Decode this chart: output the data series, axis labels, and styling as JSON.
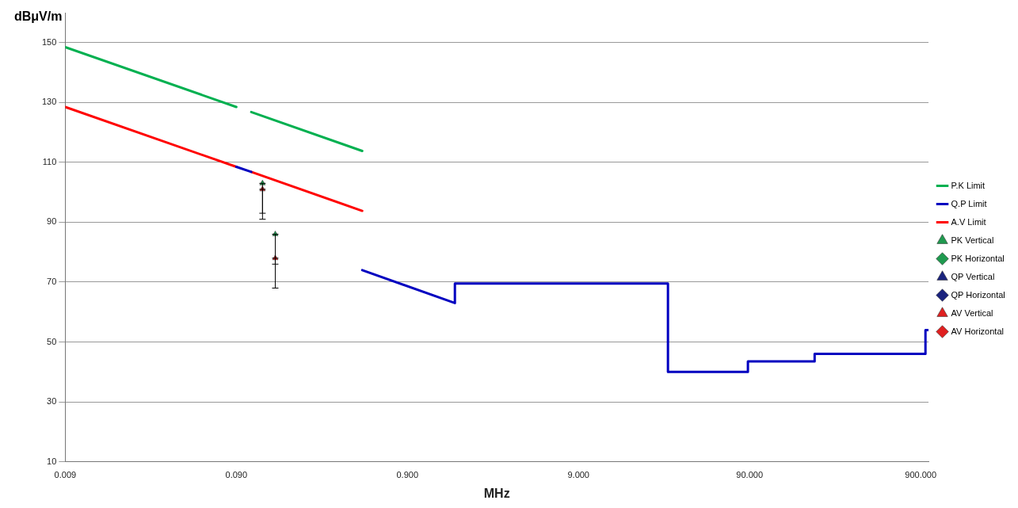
{
  "chart_data": {
    "type": "line",
    "xlabel": "MHz",
    "ylabel": "dBμV/m",
    "log": "x",
    "grid": "y",
    "legend": "right",
    "xlim": [
      0.009,
      1000
    ],
    "xticks": [
      {
        "value": 0.009,
        "label": "0.009"
      },
      {
        "value": 0.09,
        "label": "0.090"
      },
      {
        "value": 0.9,
        "label": "0.900"
      },
      {
        "value": 9,
        "label": "9.000"
      },
      {
        "value": 90,
        "label": "90.000"
      },
      {
        "value": 900,
        "label": "900.000"
      }
    ],
    "ylim": [
      10,
      160
    ],
    "yticks": [
      10,
      30,
      50,
      70,
      90,
      110,
      130,
      150
    ],
    "series": [
      {
        "name": "P.K Limit",
        "color": "#00b050",
        "marker": "none",
        "x": [
          0.009,
          0.09,
          0.1,
          0.11,
          0.49
        ],
        "values": [
          148.5,
          128.5,
          null,
          126.8,
          113.8
        ]
      },
      {
        "name": "Q.P Limit",
        "color": "#0000c0",
        "marker": "none",
        "x": [
          0.09,
          0.11,
          0.3,
          0.49,
          1.705,
          1.705,
          30,
          30,
          88,
          88,
          216,
          216,
          960,
          960,
          1000
        ],
        "values": [
          108.5,
          106.8,
          null,
          74,
          63,
          69.5,
          69.5,
          40,
          40,
          43.5,
          43.5,
          46,
          46,
          54,
          54
        ]
      },
      {
        "name": "A.V Limit",
        "color": "#ff0000",
        "marker": "none",
        "x": [
          0.009,
          0.09,
          0.1,
          0.11,
          0.49
        ],
        "values": [
          128.5,
          108.5,
          null,
          106.8,
          93.8
        ]
      },
      {
        "name": "PK Vertical",
        "type": "scatter",
        "color": "#1f9a4f",
        "marker": "triangle",
        "x": [
          0.128,
          0.152
        ],
        "values": [
          103,
          86
        ],
        "errors": [
          [
            93,
            103
          ],
          [
            76,
            86
          ]
        ]
      },
      {
        "name": "PK Horizontal",
        "type": "scatter",
        "color": "#1f9a4f",
        "marker": "diamond"
      },
      {
        "name": "QP Vertical",
        "type": "scatter",
        "color": "#1a237e",
        "marker": "triangle"
      },
      {
        "name": "QP Horizontal",
        "type": "scatter",
        "color": "#1a237e",
        "marker": "diamond"
      },
      {
        "name": "AV Vertical",
        "type": "scatter",
        "color": "#e02020",
        "marker": "triangle",
        "x": [
          0.128,
          0.152
        ],
        "values": [
          101,
          78
        ],
        "errors": [
          [
            91,
            101
          ],
          [
            68,
            78
          ]
        ]
      },
      {
        "name": "AV Horizontal",
        "type": "scatter",
        "color": "#e02020",
        "marker": "diamond"
      }
    ]
  }
}
